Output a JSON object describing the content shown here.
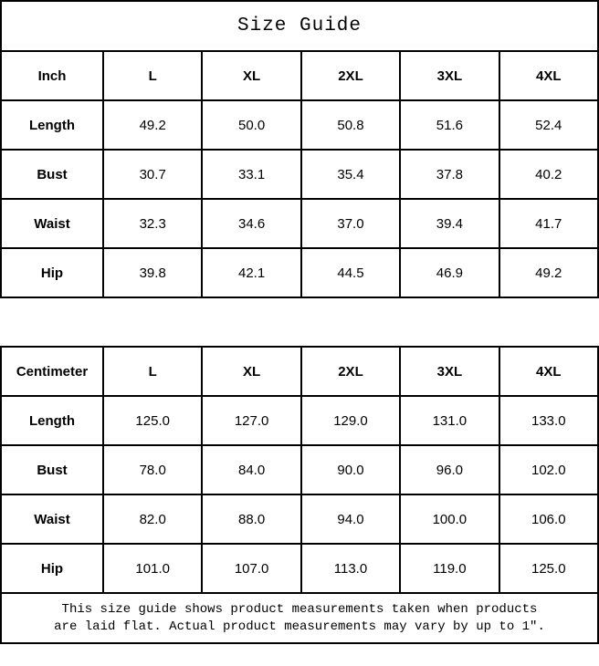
{
  "title": "Size Guide",
  "colors": {
    "border": "#000000",
    "background": "#ffffff",
    "text": "#000000"
  },
  "inch_table": {
    "unit_label": "Inch",
    "sizes": [
      "L",
      "XL",
      "2XL",
      "3XL",
      "4XL"
    ],
    "rows": [
      {
        "label": "Length",
        "values": [
          "49.2",
          "50.0",
          "50.8",
          "51.6",
          "52.4"
        ]
      },
      {
        "label": "Bust",
        "values": [
          "30.7",
          "33.1",
          "35.4",
          "37.8",
          "40.2"
        ]
      },
      {
        "label": "Waist",
        "values": [
          "32.3",
          "34.6",
          "37.0",
          "39.4",
          "41.7"
        ]
      },
      {
        "label": "Hip",
        "values": [
          "39.8",
          "42.1",
          "44.5",
          "46.9",
          "49.2"
        ]
      }
    ]
  },
  "cm_table": {
    "unit_label": "Centimeter",
    "sizes": [
      "L",
      "XL",
      "2XL",
      "3XL",
      "4XL"
    ],
    "rows": [
      {
        "label": "Length",
        "values": [
          "125.0",
          "127.0",
          "129.0",
          "131.0",
          "133.0"
        ]
      },
      {
        "label": "Bust",
        "values": [
          "78.0",
          "84.0",
          "90.0",
          "96.0",
          "102.0"
        ]
      },
      {
        "label": "Waist",
        "values": [
          "82.0",
          "88.0",
          "94.0",
          "100.0",
          "106.0"
        ]
      },
      {
        "label": "Hip",
        "values": [
          "101.0",
          "107.0",
          "113.0",
          "119.0",
          "125.0"
        ]
      }
    ]
  },
  "footer": {
    "line1": "This size guide shows product measurements taken when products",
    "line2": "are laid flat. Actual product measurements may vary by up to 1″."
  }
}
